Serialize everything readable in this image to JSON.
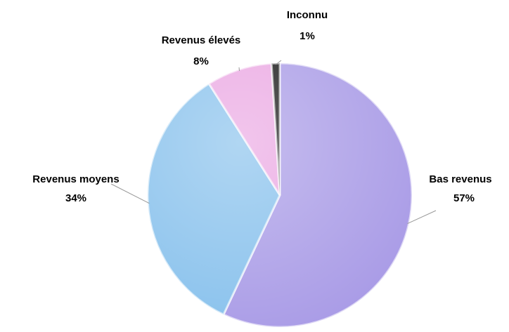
{
  "chart_data": {
    "type": "pie",
    "categories": [
      "Bas revenus",
      "Revenus moyens",
      "Revenus élevés",
      "Inconnu"
    ],
    "values": [
      57,
      34,
      8,
      1
    ],
    "value_labels": [
      "57%",
      "34%",
      "8%",
      "1%"
    ],
    "colors": [
      "#a89ae6",
      "#86c0ec",
      "#eaa6e2",
      "#111111"
    ]
  }
}
